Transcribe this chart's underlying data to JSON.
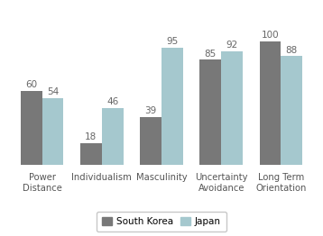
{
  "categories": [
    "Power\nDistance",
    "Individualism",
    "Masculinity",
    "Uncertainty\nAvoidance",
    "Long Term\nOrientation"
  ],
  "south_korea": [
    60,
    18,
    39,
    85,
    100
  ],
  "japan": [
    54,
    46,
    95,
    92,
    88
  ],
  "korea_color": "#787878",
  "japan_color": "#a5c8ce",
  "background_color": "#ffffff",
  "bar_width": 0.36,
  "value_fontsize": 7.5,
  "xlabel_fontsize": 7.2,
  "legend_fontsize": 7.5,
  "ylim": [
    0,
    120
  ]
}
